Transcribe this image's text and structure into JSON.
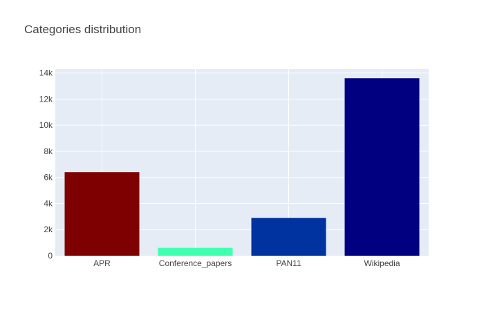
{
  "chart_data": {
    "type": "bar",
    "title": "Categories distribution",
    "categories": [
      "APR",
      "Conference_papers",
      "PAN11",
      "Wikipedia"
    ],
    "values": [
      6400,
      600,
      2900,
      13600
    ],
    "bar_colors": [
      "#7f0000",
      "#3fffb0",
      "#0033a0",
      "#000080"
    ],
    "ylim": [
      0,
      14300
    ],
    "yticks": [
      0,
      2000,
      4000,
      6000,
      8000,
      10000,
      12000,
      14000
    ],
    "ytick_labels": [
      "0",
      "2k",
      "4k",
      "6k",
      "8k",
      "10k",
      "12k",
      "14k"
    ],
    "xlabel": "",
    "ylabel": "",
    "grid": true,
    "plot_background": "#e5ecf6",
    "gridline_color": "#ffffff",
    "text_color": "#444444"
  }
}
